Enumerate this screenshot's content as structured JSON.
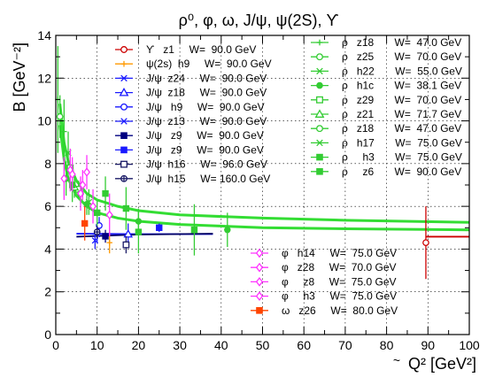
{
  "chart_data": {
    "type": "scatter",
    "title": "ρ⁰, φ, ω, J/ψ, ψ(2S), ϒ",
    "xlabel": "Q² [GeV²]",
    "ylabel": "B [GeV⁻²]",
    "xlim": [
      0,
      100
    ],
    "ylim": [
      0,
      14
    ],
    "x_ticks": [
      "0",
      "10",
      "20",
      "30",
      "40",
      "50",
      "60",
      "70",
      "80",
      "90",
      "100"
    ],
    "y_ticks": [
      "0",
      "2",
      "4",
      "6",
      "8",
      "10",
      "12",
      "14"
    ],
    "x_tick_values": [
      0,
      10,
      20,
      30,
      40,
      50,
      60,
      70,
      80,
      90,
      100
    ],
    "y_tick_values": [
      0,
      2,
      4,
      6,
      8,
      10,
      12,
      14
    ],
    "stray_label": "~",
    "grid": true,
    "legend_placement": "top and lower-right, inside plot",
    "series": [
      {
        "name": "ϒ   z1     W=  90.0 GeV",
        "color": "#cc0000",
        "marker": "circle-open",
        "points": [
          {
            "x": 89.5,
            "y": 4.3,
            "err": 1.7
          }
        ]
      },
      {
        "name": "ψ(2s)  h9     W=  90.0 GeV",
        "color": "#ff9900",
        "marker": "plus",
        "points": [
          {
            "x": 13.0,
            "y": 4.3,
            "err": 0.5
          }
        ]
      },
      {
        "name": "J/ψ  z24     W=  90.0 GeV",
        "color": "#1a1aff",
        "marker": "star",
        "points": [
          {
            "x": 10.0,
            "y": 4.7,
            "err": 0.4
          }
        ]
      },
      {
        "name": "J/ψ  z18     W=  90.0 GeV",
        "color": "#1a1aff",
        "marker": "triangle-open",
        "points": [
          {
            "x": 17.5,
            "y": 4.7,
            "err": 0.5
          }
        ]
      },
      {
        "name": "J/ψ   h9     W=  90.0 GeV",
        "color": "#1a1aff",
        "marker": "circle-open",
        "points": [
          {
            "x": 10.5,
            "y": 5.1,
            "err": 0.4
          }
        ]
      },
      {
        "name": "J/ψ  z13     W=  90.0 GeV",
        "color": "#1a1aff",
        "marker": "cross",
        "points": [
          {
            "x": 9.5,
            "y": 4.4,
            "err": 0.4
          }
        ]
      },
      {
        "name": "J/ψ   z9     W=  90.0 GeV",
        "color": "#000080",
        "marker": "square",
        "points": [
          {
            "x": 12.0,
            "y": 4.6,
            "err": 0.3
          }
        ]
      },
      {
        "name": "J/ψ   z9     W=  90.0 GeV",
        "color": "#1a1aff",
        "marker": "square",
        "points": [
          {
            "x": 25.0,
            "y": 5.0,
            "err": 0.2
          }
        ]
      },
      {
        "name": "J/ψ  h16     W=  96.0 GeV",
        "color": "#1a1a66",
        "marker": "square-open",
        "points": [
          {
            "x": 17.0,
            "y": 4.2,
            "err": 0.4
          }
        ]
      },
      {
        "name": "J/ψ  h15     W= 160.0 GeV",
        "color": "#1a1a66",
        "marker": "circle-cross",
        "points": [
          {
            "x": 10.0,
            "y": 4.8,
            "err": 0.3
          }
        ]
      },
      {
        "name": "ρ   z18       W=  47.0 GeV",
        "color": "#33cc33",
        "marker": "plus",
        "points": [
          {
            "x": 0.5,
            "y": 11.0,
            "err": 2.5
          },
          {
            "x": 2.0,
            "y": 9.5,
            "err": 1.5
          }
        ]
      },
      {
        "name": "ρ   z25       W=  70.0 GeV",
        "color": "#33cc33",
        "marker": "circle-open",
        "points": [
          {
            "x": 1.0,
            "y": 10.2,
            "err": 1.0
          }
        ]
      },
      {
        "name": "ρ   h22       W=  55.0 GeV",
        "color": "#33cc33",
        "marker": "cross",
        "points": [
          {
            "x": 3.0,
            "y": 8.5,
            "err": 1.0
          }
        ]
      },
      {
        "name": "ρ   h1c       W=  38.1 GeV",
        "color": "#33cc33",
        "marker": "circle",
        "points": [
          {
            "x": 2.5,
            "y": 7.3,
            "err": 0.8
          },
          {
            "x": 7.5,
            "y": 6.1,
            "err": 0.5
          },
          {
            "x": 20.0,
            "y": 5.3,
            "err": 0.6
          },
          {
            "x": 41.5,
            "y": 4.9,
            "err": 0.8
          }
        ]
      },
      {
        "name": "ρ   z29       W=  70.0 GeV",
        "color": "#33cc33",
        "marker": "square-open",
        "points": [
          {
            "x": 3.5,
            "y": 7.8,
            "err": 0.5
          },
          {
            "x": 5.5,
            "y": 6.8,
            "err": 0.4
          }
        ]
      },
      {
        "name": "ρ   z21       W=  71.7 GeV",
        "color": "#33cc33",
        "marker": "triangle-open",
        "points": [
          {
            "x": 4.5,
            "y": 6.9,
            "err": 0.5
          }
        ]
      },
      {
        "name": "ρ   z18       W=  47.0 GeV",
        "color": "#33cc33",
        "marker": "circle-open",
        "points": [
          {
            "x": 6.0,
            "y": 6.6,
            "err": 0.5
          }
        ]
      },
      {
        "name": "ρ   h17       W=  75.0 GeV",
        "color": "#33cc33",
        "marker": "cross",
        "points": [
          {
            "x": 8.0,
            "y": 6.2,
            "err": 0.6
          }
        ]
      },
      {
        "name": "ρ     h3       W=  75.0 GeV",
        "color": "#33cc33",
        "marker": "square",
        "points": [
          {
            "x": 12.0,
            "y": 6.6,
            "err": 0.8
          },
          {
            "x": 17.0,
            "y": 5.9,
            "err": 1.0
          },
          {
            "x": 33.5,
            "y": 4.9,
            "err": 1.2
          }
        ]
      },
      {
        "name": "ρ     z6       W=  90.0 GeV",
        "color": "#33cc33",
        "marker": "square",
        "points": [
          {
            "x": 4.0,
            "y": 7.0,
            "err": 0.8
          },
          {
            "x": 10.0,
            "y": 5.7,
            "err": 0.6
          },
          {
            "x": 20.0,
            "y": 4.8,
            "err": 1.0
          }
        ]
      },
      {
        "name": "φ   h14     W=  75.0 GeV",
        "color": "#ff33ff",
        "marker": "diamond-open",
        "points": [
          {
            "x": 3.5,
            "y": 7.7,
            "err": 1.0
          },
          {
            "x": 6.0,
            "y": 6.6,
            "err": 0.8
          },
          {
            "x": 9.0,
            "y": 6.0,
            "err": 0.8
          }
        ]
      },
      {
        "name": "φ   z28     W=  70.0 GeV",
        "color": "#ff33ff",
        "marker": "diamond-open",
        "points": [
          {
            "x": 2.0,
            "y": 7.3,
            "err": 1.0
          },
          {
            "x": 4.0,
            "y": 7.5,
            "err": 0.8
          }
        ]
      },
      {
        "name": "φ     z8     W=  75.0 GeV",
        "color": "#ff33ff",
        "marker": "diamond-open",
        "points": [
          {
            "x": 6.5,
            "y": 7.0,
            "err": 0.7
          }
        ]
      },
      {
        "name": "φ     h3     W=  75.0 GeV",
        "color": "#ff33ff",
        "marker": "diamond-open",
        "points": [
          {
            "x": 7.5,
            "y": 7.6,
            "err": 0.8
          },
          {
            "x": 13.0,
            "y": 5.6,
            "err": 1.0
          }
        ]
      },
      {
        "name": "ω   z26     W=  80.0 GeV",
        "color": "#ff4400",
        "marker": "square",
        "points": [
          {
            "x": 7.0,
            "y": 5.2,
            "err": 0.8
          }
        ]
      }
    ],
    "fit_curves": [
      {
        "color": "#33dd33",
        "points": [
          [
            1.0,
            10.8
          ],
          [
            2.0,
            9.0
          ],
          [
            3.0,
            8.1
          ],
          [
            5.0,
            7.2
          ],
          [
            7.5,
            6.6
          ],
          [
            10.0,
            6.3
          ],
          [
            15.0,
            6.0
          ],
          [
            20.0,
            5.8
          ],
          [
            30.0,
            5.6
          ],
          [
            50.0,
            5.45
          ],
          [
            70.0,
            5.35
          ],
          [
            100.0,
            5.25
          ]
        ]
      },
      {
        "color": "#33dd33",
        "points": [
          [
            1.0,
            9.8
          ],
          [
            2.0,
            8.2
          ],
          [
            3.0,
            7.3
          ],
          [
            5.0,
            6.5
          ],
          [
            7.5,
            6.0
          ],
          [
            10.0,
            5.7
          ],
          [
            15.0,
            5.45
          ],
          [
            20.0,
            5.3
          ],
          [
            30.0,
            5.15
          ],
          [
            50.0,
            5.0
          ],
          [
            70.0,
            4.95
          ],
          [
            100.0,
            4.9
          ]
        ]
      },
      {
        "color": "#1a1aff",
        "points": [
          [
            5.0,
            4.72
          ],
          [
            20.0,
            4.7
          ],
          [
            38.0,
            4.7
          ]
        ]
      },
      {
        "color": "#000066",
        "points": [
          [
            5.0,
            4.58
          ],
          [
            20.0,
            4.68
          ],
          [
            38.0,
            4.72
          ]
        ]
      },
      {
        "color": "#cc0000",
        "points": [
          [
            89.5,
            4.58
          ],
          [
            100.0,
            4.58
          ]
        ]
      }
    ]
  }
}
